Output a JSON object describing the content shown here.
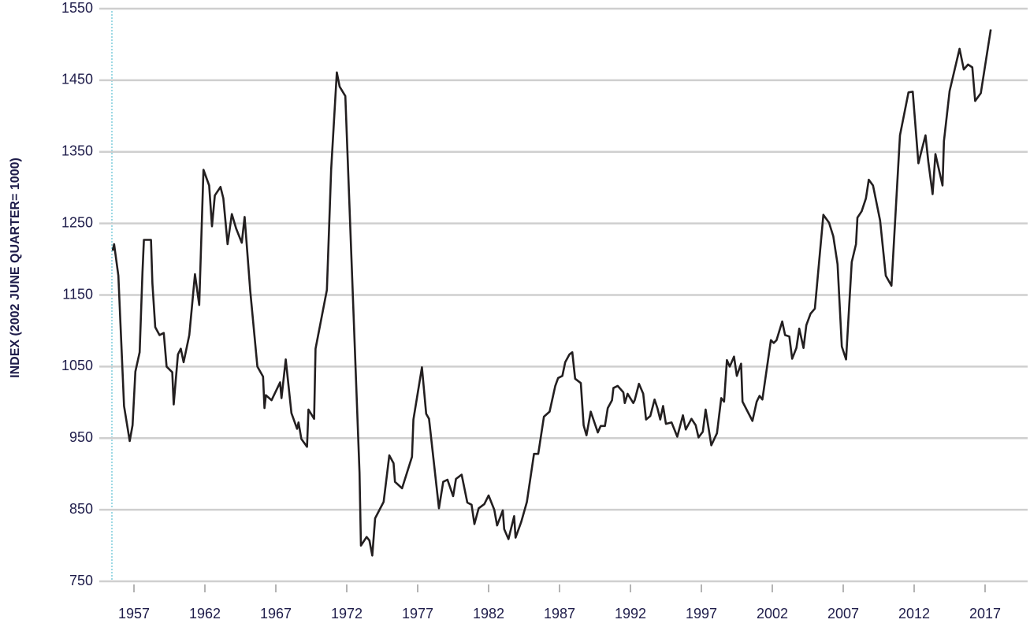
{
  "chart_data": {
    "type": "line",
    "y_label": "INDEX (2002 JUNE QUARTER= 1000)",
    "color": "#231f20",
    "grid": true,
    "xlim": [
      1956,
      2020.5
    ],
    "ylim": [
      750,
      1550
    ],
    "yticks": [
      750,
      850,
      950,
      1050,
      1150,
      1250,
      1350,
      1450,
      1550
    ],
    "xticks": [
      {
        "value": 1957.5,
        "label": "1957"
      },
      {
        "value": 1962.5,
        "label": "1962"
      },
      {
        "value": 1967.5,
        "label": "1967"
      },
      {
        "value": 1972.5,
        "label": "1972"
      },
      {
        "value": 1977.5,
        "label": "1977"
      },
      {
        "value": 1982.5,
        "label": "1982"
      },
      {
        "value": 1987.5,
        "label": "1987"
      },
      {
        "value": 1992.5,
        "label": "1992"
      },
      {
        "value": 1997.5,
        "label": "1997"
      },
      {
        "value": 2002.5,
        "label": "2002"
      },
      {
        "value": 2007.5,
        "label": "2007"
      },
      {
        "value": 2012.5,
        "label": "2012"
      },
      {
        "value": 2017.5,
        "label": "2017"
      }
    ],
    "x": [
      1956.0,
      1956.1,
      1956.4,
      1956.8,
      1957.2,
      1957.4,
      1957.6,
      1957.9,
      1958.1,
      1958.2,
      1958.7,
      1958.8,
      1959.0,
      1959.3,
      1959.6,
      1959.8,
      1960.2,
      1960.3,
      1960.6,
      1960.8,
      1961.0,
      1961.4,
      1961.8,
      1962.1,
      1962.4,
      1962.8,
      1963.0,
      1963.2,
      1963.6,
      1963.8,
      1964.1,
      1964.4,
      1964.7,
      1965.1,
      1965.3,
      1965.7,
      1966.2,
      1966.6,
      1966.7,
      1966.8,
      1967.2,
      1967.8,
      1967.9,
      1968.2,
      1968.6,
      1969.0,
      1969.1,
      1969.3,
      1969.7,
      1969.8,
      1970.2,
      1970.3,
      1971.1,
      1971.4,
      1971.8,
      1972.0,
      1972.4,
      1973.4,
      1973.5,
      1973.9,
      1974.1,
      1974.3,
      1974.5,
      1975.1,
      1975.5,
      1975.8,
      1975.9,
      1976.4,
      1977.1,
      1977.2,
      1977.8,
      1978.1,
      1978.3,
      1979.0,
      1979.3,
      1979.6,
      1980.0,
      1980.2,
      1980.6,
      1981.0,
      1981.3,
      1981.5,
      1981.8,
      1982.2,
      1982.5,
      1982.9,
      1983.1,
      1983.5,
      1983.6,
      1983.9,
      1984.3,
      1984.4,
      1984.8,
      1985.2,
      1985.7,
      1986.0,
      1986.4,
      1986.8,
      1987.2,
      1987.4,
      1987.7,
      1987.9,
      1988.2,
      1988.4,
      1988.6,
      1989.0,
      1989.2,
      1989.4,
      1989.7,
      1990.2,
      1990.4,
      1990.7,
      1990.9,
      1991.2,
      1991.3,
      1991.6,
      1992.0,
      1992.1,
      1992.3,
      1992.7,
      1992.8,
      1993.1,
      1993.4,
      1993.6,
      1993.9,
      1994.2,
      1994.4,
      1994.6,
      1994.8,
      1995.0,
      1995.4,
      1995.8,
      1996.2,
      1996.4,
      1996.8,
      1997.1,
      1997.3,
      1997.6,
      1997.8,
      1998.2,
      1998.6,
      1998.9,
      1999.1,
      1999.3,
      1999.5,
      1999.8,
      2000.0,
      2000.3,
      2000.4,
      2001.1,
      2001.4,
      2001.6,
      2001.8,
      2002.4,
      2002.6,
      2002.8,
      2003.2,
      2003.4,
      2003.7,
      2003.9,
      2004.2,
      2004.4,
      2004.7,
      2004.9,
      2005.2,
      2005.5,
      2006.1,
      2006.5,
      2006.8,
      2007.1,
      2007.4,
      2007.7,
      2008.1,
      2008.4,
      2008.5,
      2008.8,
      2009.1,
      2009.3,
      2009.6,
      2010.1,
      2010.5,
      2010.9,
      2011.5,
      2012.1,
      2012.4,
      2012.8,
      2013.0,
      2013.3,
      2013.5,
      2013.8,
      2014.0,
      2014.5,
      2014.6,
      2015.0,
      2015.7,
      2016.0,
      2016.3,
      2016.6,
      2016.8,
      2017.2,
      2017.9
    ],
    "values": [
      1212,
      1221,
      1177,
      995,
      946,
      968,
      1043,
      1070,
      1182,
      1227,
      1227,
      1166,
      1105,
      1094,
      1097,
      1050,
      1042,
      997,
      1067,
      1075,
      1056,
      1094,
      1179,
      1136,
      1325,
      1303,
      1246,
      1289,
      1301,
      1285,
      1221,
      1263,
      1243,
      1223,
      1259,
      1155,
      1050,
      1036,
      992,
      1010,
      1003,
      1028,
      1006,
      1060,
      985,
      963,
      972,
      949,
      938,
      990,
      977,
      1075,
      1157,
      1325,
      1461,
      1441,
      1428,
      902,
      800,
      812,
      807,
      786,
      838,
      861,
      926,
      915,
      889,
      880,
      924,
      976,
      1049,
      984,
      977,
      852,
      889,
      892,
      869,
      893,
      899,
      860,
      857,
      830,
      852,
      858,
      870,
      850,
      828,
      849,
      823,
      809,
      841,
      811,
      833,
      861,
      928,
      928,
      980,
      987,
      1023,
      1034,
      1037,
      1056,
      1067,
      1070,
      1033,
      1027,
      968,
      954,
      987,
      958,
      967,
      967,
      992,
      1003,
      1020,
      1023,
      1014,
      999,
      1012,
      999,
      1003,
      1026,
      1012,
      976,
      981,
      1004,
      992,
      976,
      995,
      970,
      972,
      952,
      982,
      962,
      977,
      968,
      951,
      959,
      990,
      940,
      957,
      1006,
      1001,
      1059,
      1050,
      1064,
      1037,
      1054,
      1001,
      974,
      1001,
      1009,
      1004,
      1087,
      1083,
      1087,
      1113,
      1094,
      1092,
      1061,
      1076,
      1103,
      1076,
      1108,
      1124,
      1131,
      1262,
      1251,
      1232,
      1193,
      1078,
      1060,
      1196,
      1221,
      1258,
      1267,
      1285,
      1311,
      1303,
      1254,
      1177,
      1163,
      1373,
      1433,
      1434,
      1334,
      1350,
      1373,
      1336,
      1291,
      1347,
      1303,
      1365,
      1435,
      1494,
      1465,
      1472,
      1468,
      1421,
      1432,
      1521
    ]
  }
}
